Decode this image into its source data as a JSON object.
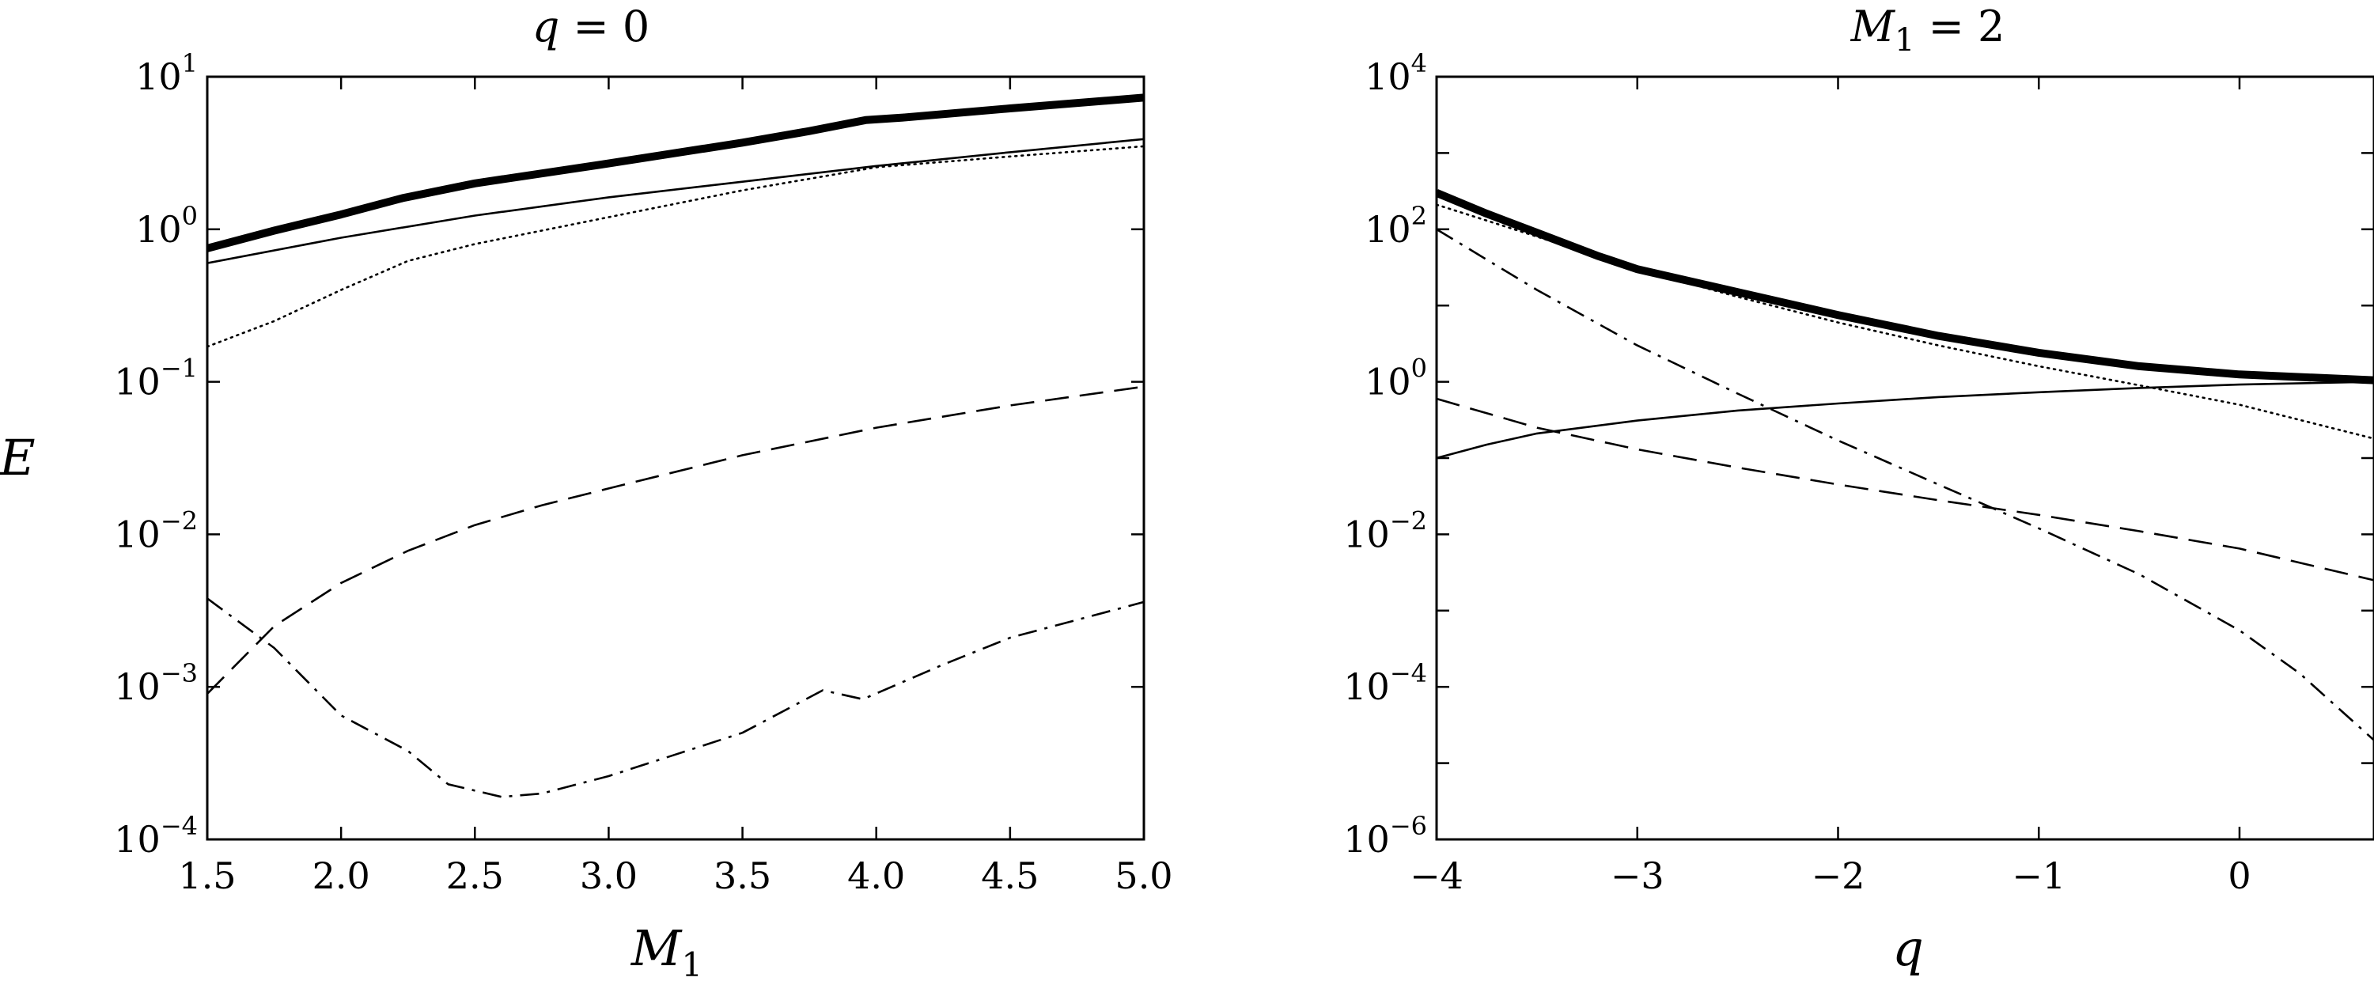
{
  "chart_data": [
    {
      "type": "line",
      "title_parts": {
        "lhs": "q",
        "eq": " = ",
        "rhs": "0"
      },
      "xlabel": {
        "main": "M",
        "sub": "1"
      },
      "ylabel": "E",
      "xlim": [
        1.5,
        5.0
      ],
      "ylim": [
        0.0001,
        10
      ],
      "yscale": "log",
      "xticks": [
        1.5,
        2.0,
        2.5,
        3.0,
        3.5,
        4.0,
        4.5,
        5.0
      ],
      "xtick_labels": [
        "1.5",
        "2.0",
        "2.5",
        "3.0",
        "3.5",
        "4.0",
        "4.5",
        "5.0"
      ],
      "yticks": [
        {
          "value": 10,
          "base": "10",
          "exp": "1"
        },
        {
          "value": 1,
          "base": "10",
          "exp": "0"
        },
        {
          "value": 0.1,
          "base": "10",
          "exp": "−1"
        },
        {
          "value": 0.01,
          "base": "10",
          "exp": "−2"
        },
        {
          "value": 0.001,
          "base": "10",
          "exp": "−3"
        },
        {
          "value": 0.0001,
          "base": "10",
          "exp": "−4"
        }
      ],
      "grid": false,
      "series": [
        {
          "style": "thick-solid",
          "x": [
            1.5,
            1.75,
            2.0,
            2.23,
            2.5,
            3.0,
            3.5,
            3.75,
            3.96,
            4.1,
            4.5,
            5.0
          ],
          "y": [
            0.75,
            0.98,
            1.25,
            1.6,
            2.0,
            2.7,
            3.7,
            4.4,
            5.2,
            5.4,
            6.2,
            7.3
          ]
        },
        {
          "style": "thin-solid",
          "x": [
            1.5,
            2.0,
            2.5,
            3.0,
            3.5,
            4.0,
            4.5,
            5.0
          ],
          "y": [
            0.6,
            0.88,
            1.23,
            1.62,
            2.05,
            2.6,
            3.2,
            3.9
          ]
        },
        {
          "style": "dotted",
          "x": [
            1.5,
            1.75,
            2.0,
            2.25,
            2.5,
            3.0,
            3.5,
            4.0,
            4.5,
            5.0
          ],
          "y": [
            0.17,
            0.25,
            0.4,
            0.62,
            0.8,
            1.2,
            1.8,
            2.55,
            3.0,
            3.5
          ]
        },
        {
          "style": "dashed",
          "x": [
            1.5,
            1.75,
            2.0,
            2.25,
            2.5,
            2.75,
            3.0,
            3.5,
            4.0,
            4.5,
            5.0
          ],
          "y": [
            0.0009,
            0.0025,
            0.0048,
            0.0078,
            0.0115,
            0.0155,
            0.02,
            0.033,
            0.05,
            0.07,
            0.093
          ]
        },
        {
          "style": "dashdot",
          "x": [
            1.5,
            1.75,
            2.0,
            2.25,
            2.4,
            2.6,
            2.75,
            3.0,
            3.25,
            3.5,
            3.8,
            3.95,
            4.25,
            4.5,
            5.0
          ],
          "y": [
            0.0038,
            0.0018,
            0.00065,
            0.00038,
            0.00023,
            0.00019,
            0.0002,
            0.00026,
            0.00036,
            0.0005,
            0.00095,
            0.00083,
            0.0014,
            0.0021,
            0.0036
          ]
        }
      ]
    },
    {
      "type": "line",
      "title_parts": {
        "lhs": "M",
        "sub": "1",
        "eq": " = ",
        "rhs": "2"
      },
      "xlabel": {
        "main": "q",
        "sub": ""
      },
      "ylabel": "",
      "xlim": [
        -4,
        0.67
      ],
      "ylim": [
        1e-06,
        10000
      ],
      "yscale": "log",
      "xticks": [
        -4,
        -3,
        -2,
        -1,
        0
      ],
      "xtick_labels": [
        "−4",
        "−3",
        "−2",
        "−1",
        "0"
      ],
      "yticks": [
        {
          "value": 10000,
          "base": "10",
          "exp": "4"
        },
        {
          "value": 100,
          "base": "10",
          "exp": "2"
        },
        {
          "value": 1,
          "base": "10",
          "exp": "0"
        },
        {
          "value": 0.01,
          "base": "10",
          "exp": "−2"
        },
        {
          "value": 0.0001,
          "base": "10",
          "exp": "−4"
        },
        {
          "value": 1e-06,
          "base": "10",
          "exp": "−6"
        }
      ],
      "grid": false,
      "series": [
        {
          "style": "thick-solid",
          "x": [
            -4.0,
            -3.75,
            -3.5,
            -3.2,
            -3.0,
            -2.5,
            -2.0,
            -1.5,
            -1.0,
            -0.5,
            0.0,
            0.67
          ],
          "y": [
            300,
            160,
            90,
            45,
            30,
            15,
            7.5,
            4.0,
            2.4,
            1.6,
            1.25,
            1.05
          ]
        },
        {
          "style": "thin-solid",
          "x": [
            -4.0,
            -3.75,
            -3.5,
            -3.0,
            -2.5,
            -2.0,
            -1.5,
            -1.0,
            -0.5,
            0.0,
            0.67
          ],
          "y": [
            0.1,
            0.15,
            0.21,
            0.31,
            0.42,
            0.52,
            0.63,
            0.73,
            0.83,
            0.92,
            1.0
          ]
        },
        {
          "style": "dotted",
          "x": [
            -4.0,
            -3.75,
            -3.5,
            -3.0,
            -2.5,
            -2.0,
            -1.5,
            -1.0,
            -0.5,
            0.0,
            0.67
          ],
          "y": [
            210,
            130,
            80,
            30,
            13,
            6,
            3.0,
            1.6,
            0.9,
            0.5,
            0.18
          ]
        },
        {
          "style": "dashed",
          "x": [
            -4.0,
            -3.5,
            -3.0,
            -2.5,
            -2.0,
            -1.5,
            -1.0,
            -0.5,
            0.0,
            0.67
          ],
          "y": [
            0.6,
            0.25,
            0.13,
            0.075,
            0.045,
            0.028,
            0.018,
            0.011,
            0.0065,
            0.0025
          ]
        },
        {
          "style": "dashdot",
          "x": [
            -4.0,
            -3.75,
            -3.5,
            -3.0,
            -2.5,
            -2.0,
            -1.5,
            -1.0,
            -0.5,
            0.0,
            0.3,
            0.67
          ],
          "y": [
            100,
            40,
            16,
            3.0,
            0.7,
            0.17,
            0.045,
            0.012,
            0.003,
            0.00055,
            0.00015,
            2e-05
          ]
        }
      ]
    }
  ]
}
